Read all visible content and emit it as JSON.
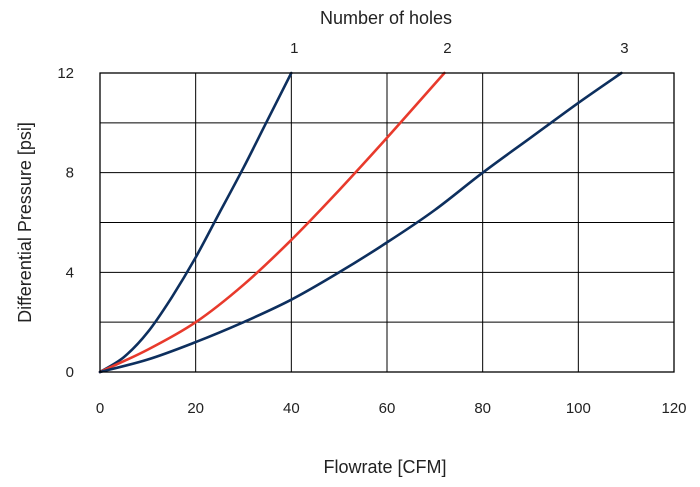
{
  "chart_data": {
    "type": "line",
    "title": "Number of holes",
    "xlabel": "Flowrate [CFM]",
    "ylabel": "Differential Pressure [psi]",
    "xlim": [
      0,
      120
    ],
    "ylim": [
      0,
      12
    ],
    "x_ticks": [
      0,
      20,
      40,
      60,
      80,
      100,
      120
    ],
    "y_ticks": [
      0,
      4,
      8,
      12
    ],
    "x_grid": [
      0,
      20,
      40,
      60,
      80,
      100,
      120
    ],
    "y_grid": [
      0,
      2,
      4,
      6,
      8,
      10,
      12
    ],
    "grid": true,
    "series": [
      {
        "name": "1",
        "color": "#0d2f5e",
        "x": [
          0,
          5,
          10,
          15,
          20,
          25,
          30,
          35,
          40
        ],
        "y": [
          0,
          0.6,
          1.6,
          3.0,
          4.6,
          6.4,
          8.2,
          10.1,
          12.0
        ]
      },
      {
        "name": "2",
        "color": "#e83a2c",
        "x": [
          0,
          10,
          20,
          30,
          40,
          50,
          60,
          72
        ],
        "y": [
          0,
          0.9,
          2.0,
          3.5,
          5.3,
          7.3,
          9.4,
          12.0
        ]
      },
      {
        "name": "3",
        "color": "#0d2f5e",
        "x": [
          0,
          10,
          20,
          30,
          40,
          50,
          60,
          70,
          80,
          90,
          100,
          109
        ],
        "y": [
          0,
          0.5,
          1.2,
          2.0,
          2.9,
          4.0,
          5.2,
          6.5,
          8.0,
          9.4,
          10.8,
          12.0
        ]
      }
    ]
  }
}
